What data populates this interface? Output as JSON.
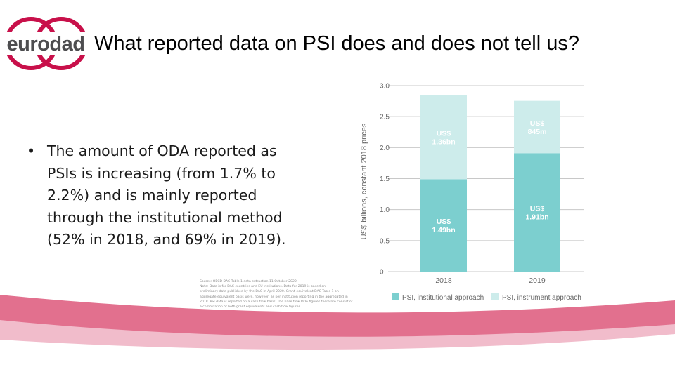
{
  "logo": {
    "text": "eurodad",
    "ring_color": "#c8104a",
    "text_color": "#4d4d4f"
  },
  "title": "What reported data on PSI does and does not tell us?",
  "bullet": {
    "lines": [
      "The amount of ODA reported as",
      "PSIs is increasing (from 1.7% to",
      "2.2%) and is mainly reported",
      "through the institutional method",
      "(52% in 2018, and 69% in 2019)."
    ]
  },
  "footnote": {
    "lines": [
      "Source: OECD DAC Table 1 data extraction 11 October 2020.",
      "Note: Data is for DAC countries and EU institutions. Data for 2019 is based on",
      "preliminary data published by the DAC in April 2020. Grant-equivalent DAC Table 1 on",
      "aggregate equivalent basis were, however, as per institution reporting in the aggregated in",
      "2018. PSI data is reported on a cash flow basis. The base flow ODA figures therefore consist of",
      "a combination of both grant equivalents and cash flow figures."
    ]
  },
  "colors": {
    "institutional": "#7ccfcf",
    "instrument": "#cdeceb",
    "gridline": "#c8c8c8",
    "wave_dark": "#e2708e",
    "wave_light": "#f1bccb"
  },
  "chart_data": {
    "type": "bar",
    "stacked": true,
    "categories": [
      "2018",
      "2019"
    ],
    "ylabel": "US$ billions, constant 2018 prices",
    "ylim": [
      0,
      3.0
    ],
    "yticks": [
      "0",
      "0.5",
      "1.0",
      "1.5",
      "2.0",
      "2.5",
      "3.0"
    ],
    "grid": true,
    "legend_position": "bottom",
    "series": [
      {
        "name": "PSI, institutional approach",
        "values": [
          1.49,
          1.91
        ],
        "labels": [
          [
            "US$",
            "1.49bn"
          ],
          [
            "US$",
            "1.91bn"
          ]
        ]
      },
      {
        "name": "PSI, instrument approach",
        "values": [
          1.36,
          0.845
        ],
        "labels": [
          [
            "US$",
            "1.36bn"
          ],
          [
            "US$",
            "845m"
          ]
        ]
      }
    ]
  }
}
